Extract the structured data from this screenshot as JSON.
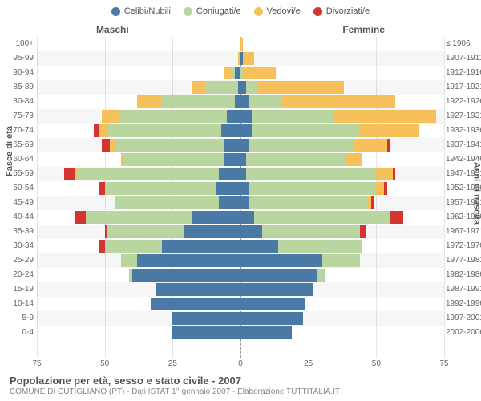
{
  "legend": {
    "items": [
      {
        "label": "Celibi/Nubili",
        "color": "#4a79a5"
      },
      {
        "label": "Coniugati/e",
        "color": "#b9d6a1"
      },
      {
        "label": "Vedovi/e",
        "color": "#f6c15a"
      },
      {
        "label": "Divorziati/e",
        "color": "#d33631"
      }
    ]
  },
  "headers": {
    "male": "Maschi",
    "female": "Femmine"
  },
  "axis": {
    "left_label": "Fasce di età",
    "right_label": "Anni di nascita",
    "x_max": 75,
    "x_ticks": [
      75,
      50,
      25,
      0,
      25,
      50,
      75
    ]
  },
  "colors": {
    "single": "#4a79a5",
    "married": "#b9d6a1",
    "widowed": "#f6c15a",
    "divorced": "#d33631",
    "grid": "#e5e5e5",
    "bg": "#ffffff"
  },
  "rows": [
    {
      "age": "100+",
      "born": "≤ 1906",
      "m": {
        "s": 0,
        "c": 0,
        "v": 0,
        "d": 0
      },
      "f": {
        "s": 0,
        "c": 0,
        "v": 1,
        "d": 0
      }
    },
    {
      "age": "95-99",
      "born": "1907-1911",
      "m": {
        "s": 0,
        "c": 0,
        "v": 1,
        "d": 0
      },
      "f": {
        "s": 1,
        "c": 0,
        "v": 4,
        "d": 0
      }
    },
    {
      "age": "90-94",
      "born": "1912-1916",
      "m": {
        "s": 2,
        "c": 1,
        "v": 3,
        "d": 0
      },
      "f": {
        "s": 0,
        "c": 1,
        "v": 12,
        "d": 0
      }
    },
    {
      "age": "85-89",
      "born": "1917-1921",
      "m": {
        "s": 1,
        "c": 12,
        "v": 5,
        "d": 0
      },
      "f": {
        "s": 2,
        "c": 4,
        "v": 32,
        "d": 0
      }
    },
    {
      "age": "80-84",
      "born": "1922-1926",
      "m": {
        "s": 2,
        "c": 27,
        "v": 9,
        "d": 0
      },
      "f": {
        "s": 3,
        "c": 12,
        "v": 42,
        "d": 0
      }
    },
    {
      "age": "75-79",
      "born": "1927-1931",
      "m": {
        "s": 5,
        "c": 40,
        "v": 6,
        "d": 0
      },
      "f": {
        "s": 4,
        "c": 30,
        "v": 38,
        "d": 0
      }
    },
    {
      "age": "70-74",
      "born": "1932-1936",
      "m": {
        "s": 7,
        "c": 42,
        "v": 3,
        "d": 2
      },
      "f": {
        "s": 4,
        "c": 40,
        "v": 22,
        "d": 0
      }
    },
    {
      "age": "65-69",
      "born": "1937-1941",
      "m": {
        "s": 6,
        "c": 40,
        "v": 2,
        "d": 3
      },
      "f": {
        "s": 3,
        "c": 39,
        "v": 12,
        "d": 1
      }
    },
    {
      "age": "60-64",
      "born": "1942-1946",
      "m": {
        "s": 6,
        "c": 37,
        "v": 1,
        "d": 0
      },
      "f": {
        "s": 2,
        "c": 37,
        "v": 6,
        "d": 0
      }
    },
    {
      "age": "55-59",
      "born": "1947-1951",
      "m": {
        "s": 8,
        "c": 52,
        "v": 1,
        "d": 4
      },
      "f": {
        "s": 2,
        "c": 48,
        "v": 6,
        "d": 1
      }
    },
    {
      "age": "50-54",
      "born": "1952-1956",
      "m": {
        "s": 9,
        "c": 41,
        "v": 0,
        "d": 2
      },
      "f": {
        "s": 3,
        "c": 47,
        "v": 3,
        "d": 1
      }
    },
    {
      "age": "45-49",
      "born": "1957-1961",
      "m": {
        "s": 8,
        "c": 38,
        "v": 0,
        "d": 0
      },
      "f": {
        "s": 3,
        "c": 44,
        "v": 1,
        "d": 1
      }
    },
    {
      "age": "40-44",
      "born": "1962-1966",
      "m": {
        "s": 18,
        "c": 39,
        "v": 0,
        "d": 4
      },
      "f": {
        "s": 5,
        "c": 50,
        "v": 0,
        "d": 5
      }
    },
    {
      "age": "35-39",
      "born": "1967-1971",
      "m": {
        "s": 21,
        "c": 28,
        "v": 0,
        "d": 1
      },
      "f": {
        "s": 8,
        "c": 36,
        "v": 0,
        "d": 2
      }
    },
    {
      "age": "30-34",
      "born": "1972-1976",
      "m": {
        "s": 29,
        "c": 21,
        "v": 0,
        "d": 2
      },
      "f": {
        "s": 14,
        "c": 31,
        "v": 0,
        "d": 0
      }
    },
    {
      "age": "25-29",
      "born": "1977-1981",
      "m": {
        "s": 38,
        "c": 6,
        "v": 0,
        "d": 0
      },
      "f": {
        "s": 30,
        "c": 14,
        "v": 0,
        "d": 0
      }
    },
    {
      "age": "20-24",
      "born": "1982-1986",
      "m": {
        "s": 40,
        "c": 1,
        "v": 0,
        "d": 0
      },
      "f": {
        "s": 28,
        "c": 3,
        "v": 0,
        "d": 0
      }
    },
    {
      "age": "15-19",
      "born": "1987-1991",
      "m": {
        "s": 31,
        "c": 0,
        "v": 0,
        "d": 0
      },
      "f": {
        "s": 27,
        "c": 0,
        "v": 0,
        "d": 0
      }
    },
    {
      "age": "10-14",
      "born": "1992-1996",
      "m": {
        "s": 33,
        "c": 0,
        "v": 0,
        "d": 0
      },
      "f": {
        "s": 24,
        "c": 0,
        "v": 0,
        "d": 0
      }
    },
    {
      "age": "5-9",
      "born": "1997-2001",
      "m": {
        "s": 25,
        "c": 0,
        "v": 0,
        "d": 0
      },
      "f": {
        "s": 23,
        "c": 0,
        "v": 0,
        "d": 0
      }
    },
    {
      "age": "0-4",
      "born": "2002-2006",
      "m": {
        "s": 25,
        "c": 0,
        "v": 0,
        "d": 0
      },
      "f": {
        "s": 19,
        "c": 0,
        "v": 0,
        "d": 0
      }
    }
  ],
  "footer": {
    "title": "Popolazione per età, sesso e stato civile - 2007",
    "subtitle": "COMUNE DI CUTIGLIANO (PT) - Dati ISTAT 1° gennaio 2007 - Elaborazione TUTTITALIA.IT"
  }
}
